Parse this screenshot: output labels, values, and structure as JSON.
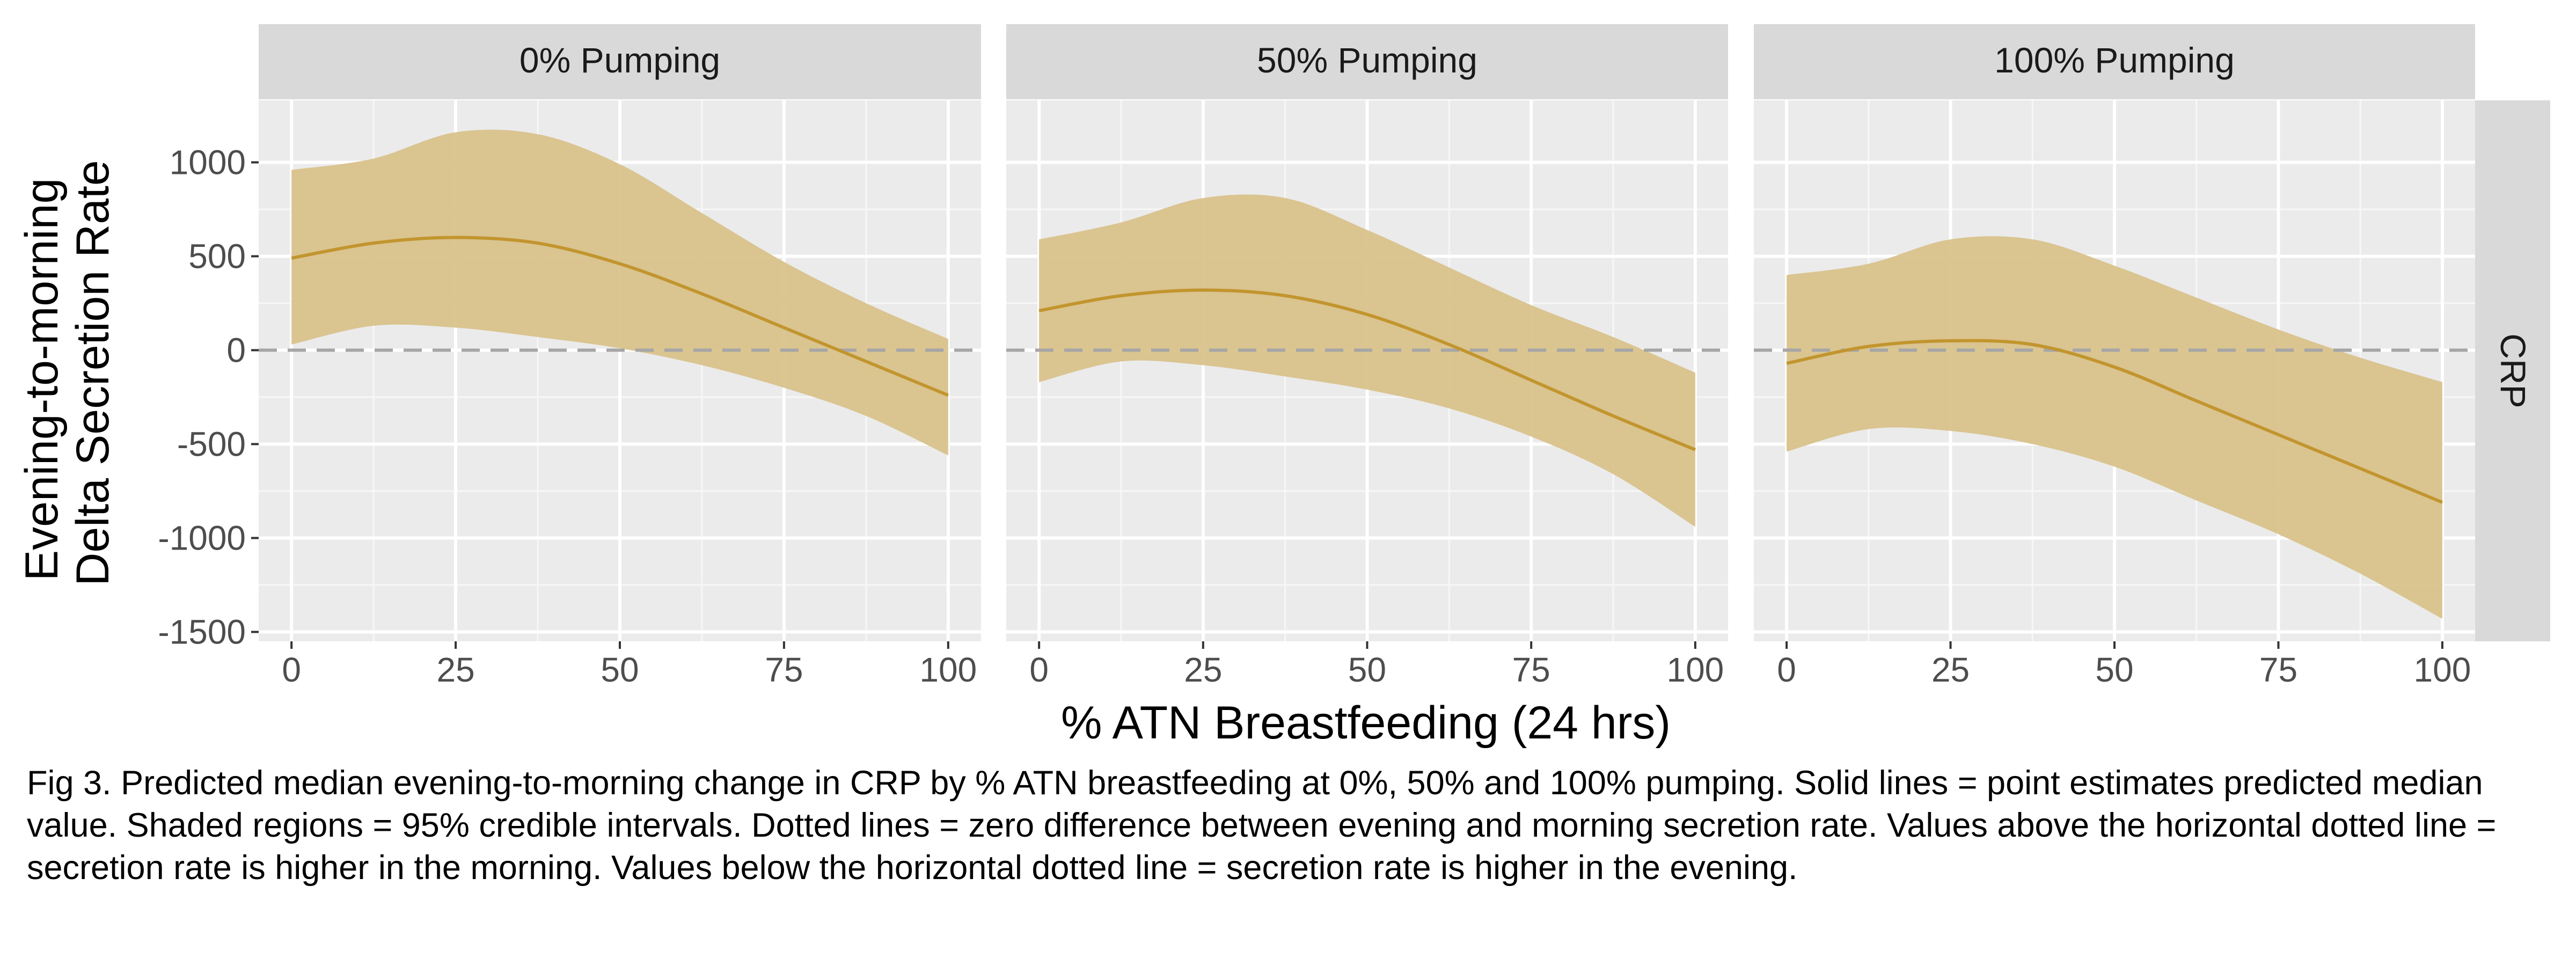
{
  "caption": "Fig 3. Predicted median evening-to-morning change in CRP by % ATN breastfeeding at 0%, 50% and 100% pumping. Solid lines = point estimates predicted median value. Shaded regions = 95% credible intervals. Dotted lines = zero difference between evening and morning secretion rate. Values above the horizontal dotted line = secretion rate is higher in the morning. Values below the horizontal dotted line = secretion rate is higher in the evening.",
  "chart_data": {
    "type": "line",
    "xlabel": "% ATN Breastfeeding (24 hrs)",
    "ylabel_lines": [
      "Evening-to-morning",
      "Delta Secretion Rate"
    ],
    "row_strip": "CRP",
    "xlim": [
      -5,
      105
    ],
    "ylim": [
      -1550,
      1330
    ],
    "x_ticks": [
      0,
      25,
      50,
      75,
      100
    ],
    "y_ticks": [
      1000,
      500,
      0,
      -500,
      -1000,
      -1500
    ],
    "x_tick_labels": [
      "0",
      "25",
      "50",
      "75",
      "100"
    ],
    "y_tick_labels": [
      "1000",
      "500",
      "0",
      "-500",
      "-1000",
      "-1500"
    ],
    "reference_line_y": 0,
    "grid": true,
    "line_color": "#c2952e",
    "ribbon_color": "#d9c28b",
    "panels": [
      {
        "title": "0% Pumping",
        "x": [
          0,
          12.5,
          25,
          37.5,
          50,
          62.5,
          75,
          87.5,
          100
        ],
        "median": [
          490,
          570,
          600,
          570,
          460,
          300,
          120,
          -60,
          -240
        ],
        "lower": [
          30,
          130,
          120,
          70,
          10,
          -80,
          -200,
          -350,
          -560
        ],
        "upper": [
          960,
          1020,
          1160,
          1150,
          990,
          730,
          470,
          250,
          60
        ]
      },
      {
        "title": "50% Pumping",
        "x": [
          0,
          12.5,
          25,
          37.5,
          50,
          62.5,
          75,
          87.5,
          100
        ],
        "median": [
          210,
          290,
          320,
          290,
          190,
          30,
          -160,
          -350,
          -530
        ],
        "lower": [
          -170,
          -60,
          -80,
          -140,
          -210,
          -310,
          -460,
          -660,
          -940
        ],
        "upper": [
          590,
          680,
          810,
          810,
          640,
          440,
          240,
          70,
          -120
        ]
      },
      {
        "title": "100% Pumping",
        "x": [
          0,
          12.5,
          25,
          37.5,
          50,
          62.5,
          75,
          87.5,
          100
        ],
        "median": [
          -70,
          20,
          50,
          30,
          -90,
          -270,
          -450,
          -630,
          -810
        ],
        "lower": [
          -540,
          -420,
          -430,
          -500,
          -620,
          -800,
          -980,
          -1190,
          -1430
        ],
        "upper": [
          400,
          460,
          590,
          590,
          450,
          280,
          110,
          -40,
          -170
        ]
      }
    ]
  }
}
